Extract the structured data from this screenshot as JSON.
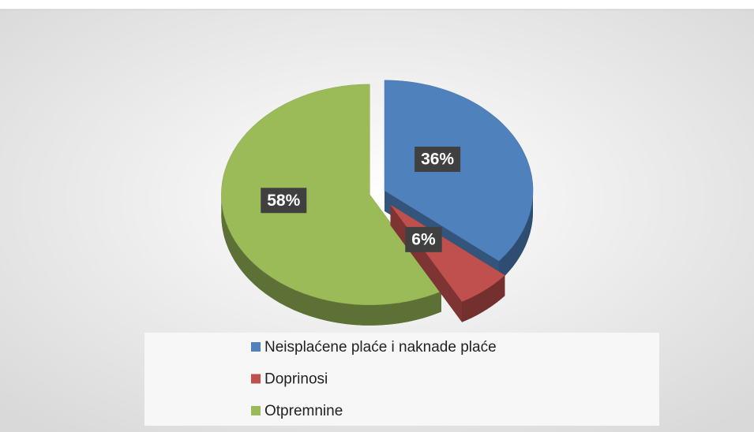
{
  "chart_data": {
    "type": "pie",
    "categories": [
      "Neisplaćene plaće i naknade plaće",
      "Doprinosi",
      "Otpremnine"
    ],
    "values": [
      36,
      6,
      58
    ],
    "value_labels": [
      "36%",
      "6%",
      "58%"
    ],
    "colors": [
      "#4f81bd",
      "#c0504d",
      "#9bbb59"
    ],
    "legend": "bottom"
  }
}
